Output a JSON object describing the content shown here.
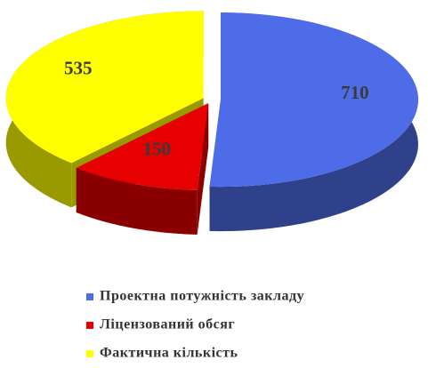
{
  "chart_data": {
    "type": "pie",
    "categories": [
      "Проектна потужність закладу",
      "Ліцензований обсяг",
      "Фактична кількість"
    ],
    "values": [
      710,
      150,
      535
    ],
    "colors": [
      "#4f6ce8",
      "#e60000",
      "#ffff00"
    ],
    "legend": "bottom"
  }
}
